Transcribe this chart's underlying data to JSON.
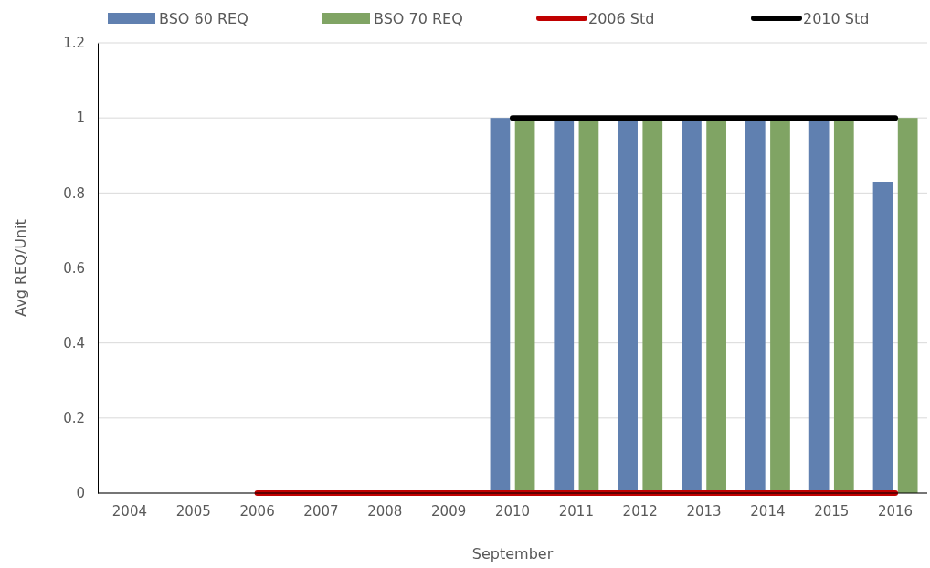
{
  "chart_data": {
    "type": "bar",
    "xlabel": "September",
    "ylabel": "Avg REQ/Unit",
    "categories": [
      "2004",
      "2005",
      "2006",
      "2007",
      "2008",
      "2009",
      "2010",
      "2011",
      "2012",
      "2013",
      "2014",
      "2015",
      "2016"
    ],
    "series": [
      {
        "name": "BSO 60 REQ",
        "color": "#6080b0",
        "values": [
          null,
          null,
          null,
          null,
          null,
          null,
          1,
          1,
          1,
          1,
          1,
          1,
          0.83
        ]
      },
      {
        "name": "BSO 70 REQ",
        "color": "#80a464",
        "values": [
          null,
          null,
          null,
          null,
          null,
          null,
          1,
          1,
          1,
          1,
          1,
          1,
          1
        ]
      },
      {
        "name": "2006 Std",
        "type": "line",
        "color": "#c00000",
        "values": [
          null,
          null,
          0,
          0,
          0,
          0,
          0,
          0,
          0,
          0,
          0,
          0,
          0
        ]
      },
      {
        "name": "2010 Std",
        "type": "line",
        "color": "#000000",
        "values": [
          null,
          null,
          null,
          null,
          null,
          null,
          1,
          1,
          1,
          1,
          1,
          1,
          1
        ]
      }
    ],
    "ylim": [
      0,
      1.2
    ],
    "yticks": [
      0,
      0.2,
      0.4,
      0.6,
      0.8,
      1,
      1.2
    ],
    "grid": "y",
    "legend": "top"
  }
}
